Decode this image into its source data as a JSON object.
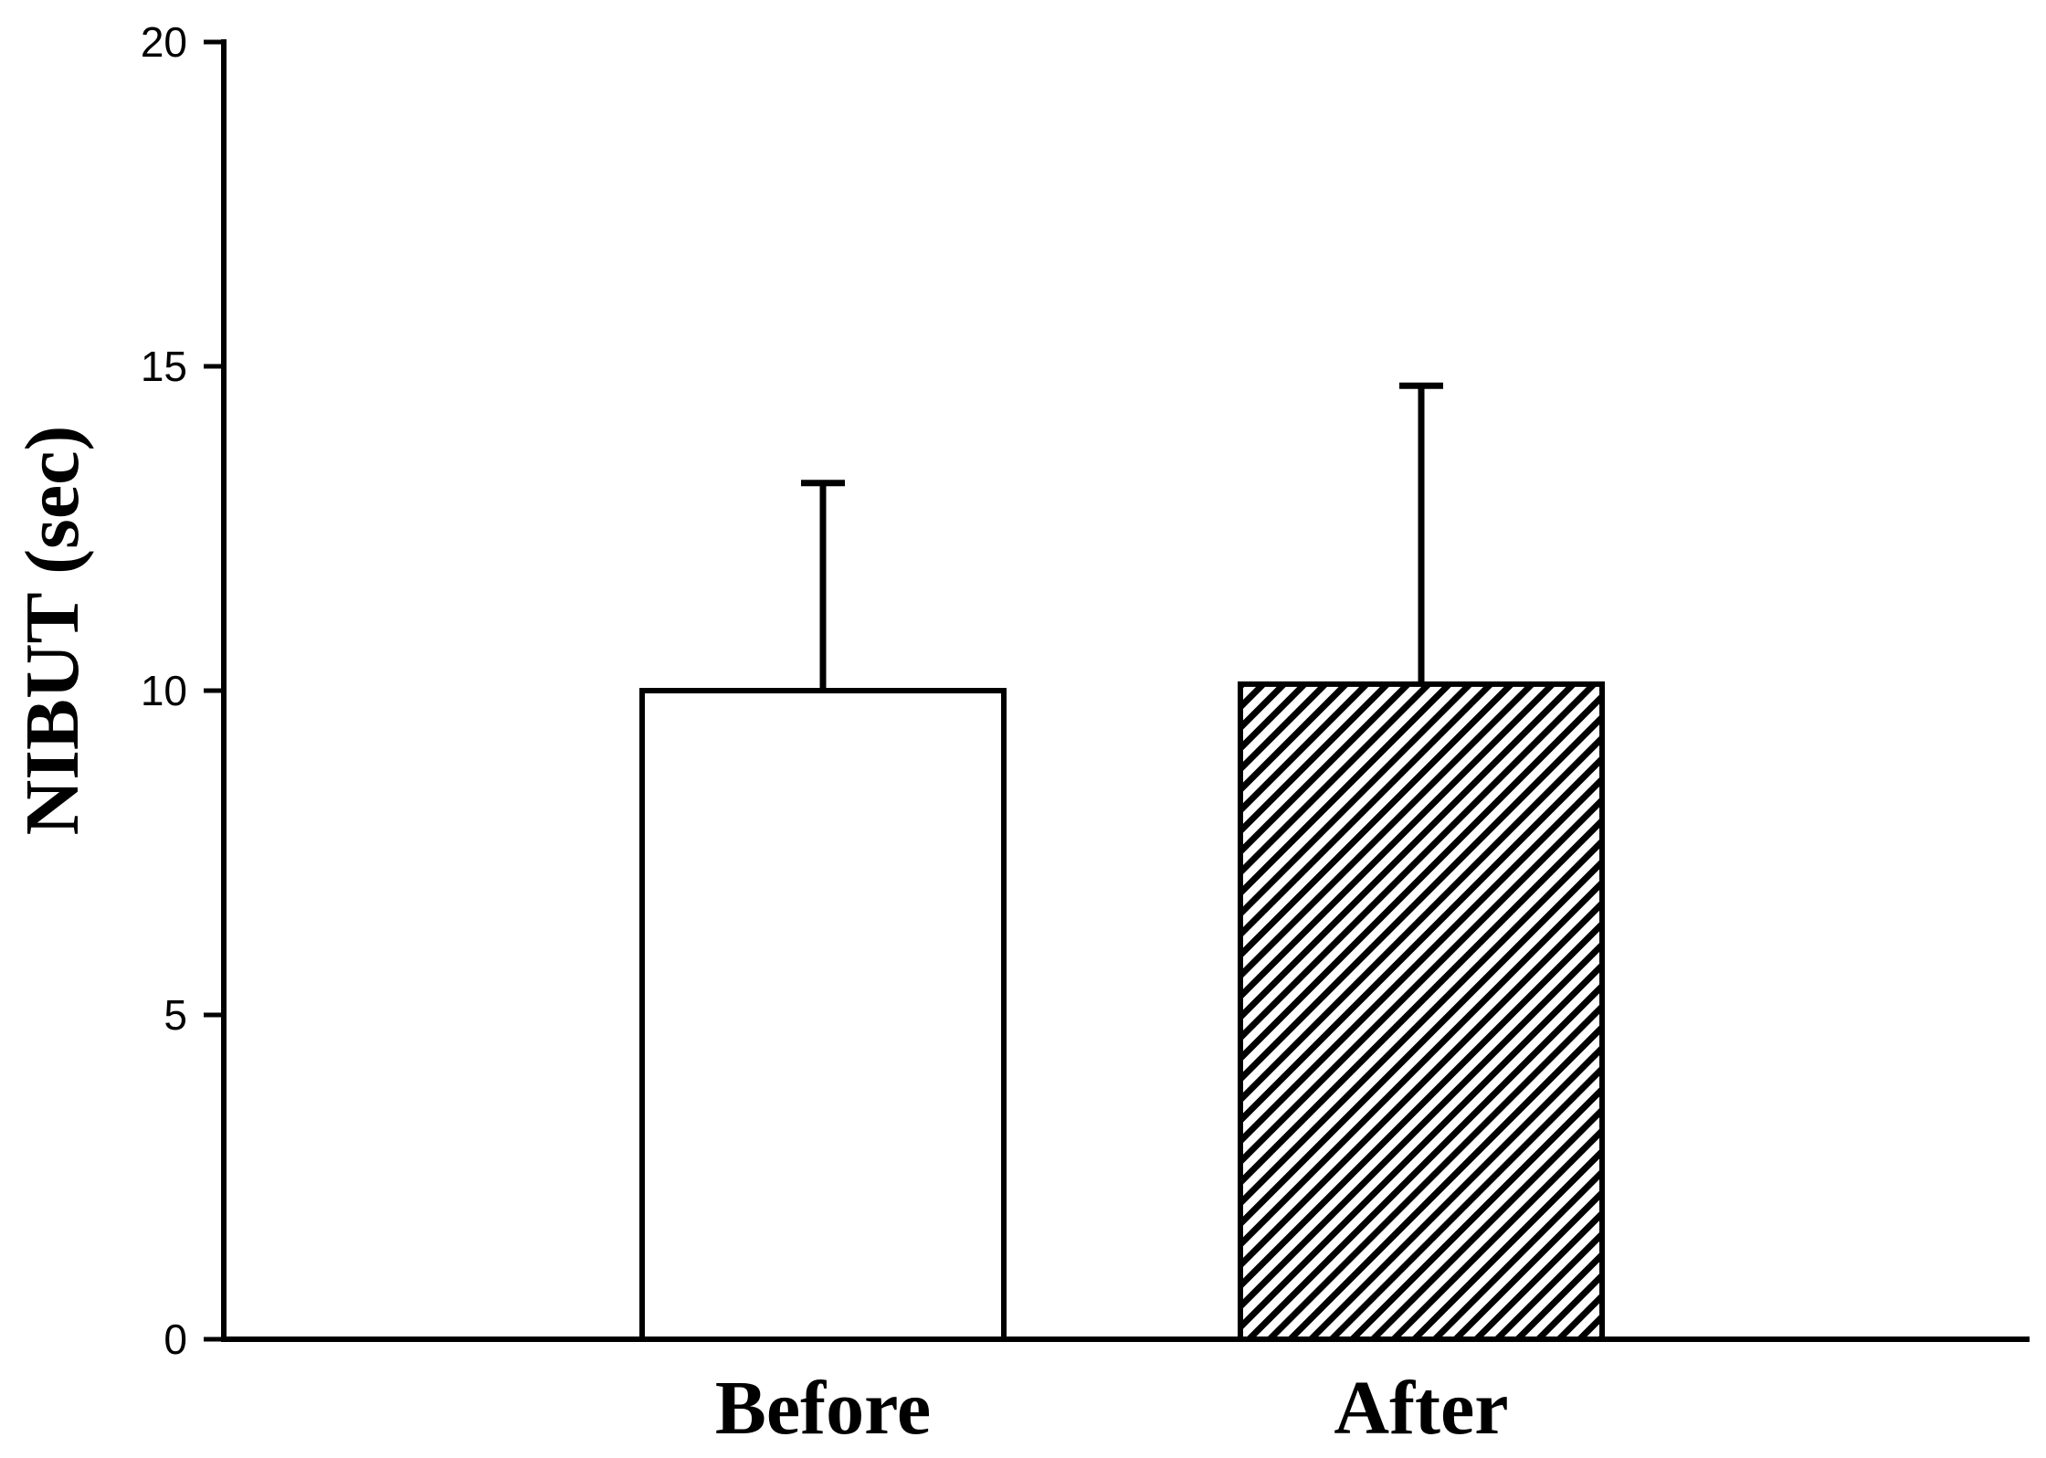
{
  "chart_data": {
    "type": "bar",
    "title": "",
    "xlabel": "",
    "ylabel": "NIBUT (sec)",
    "ylim": [
      0,
      20
    ],
    "yticks": [
      0,
      5,
      10,
      15,
      20
    ],
    "ytick_labels": [
      "0",
      "5",
      "10",
      "15",
      "20"
    ],
    "grid": false,
    "legend": "none",
    "categories": [
      "Before",
      "After"
    ],
    "values": [
      10.0,
      10.1
    ],
    "error_upper": [
      3.2,
      4.6
    ],
    "colors": {
      "axis": "#000000",
      "bar_fill": "#ffffff",
      "bar_stroke": "#000000"
    },
    "bar_patterns": [
      "solid-white",
      "diagonal-hatch"
    ]
  }
}
